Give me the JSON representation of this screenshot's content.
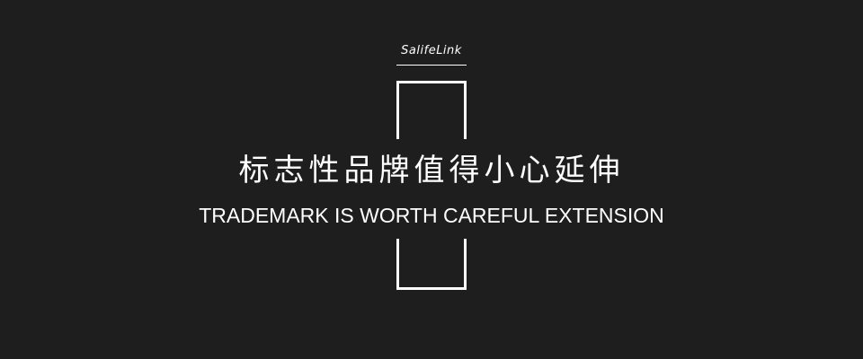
{
  "brand": {
    "logo_text": "SalifeLink"
  },
  "headline": {
    "chinese": "标志性品牌值得小心延伸",
    "english": "TRADEMARK IS WORTH CAREFUL EXTENSION"
  },
  "colors": {
    "background": "#1e1e1e",
    "foreground": "#ffffff"
  }
}
